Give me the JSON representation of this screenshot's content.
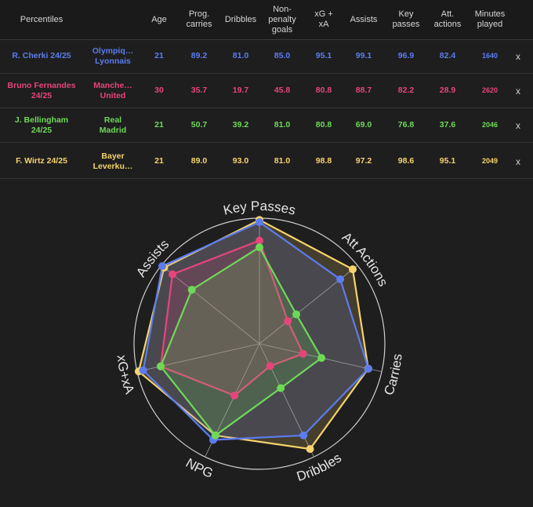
{
  "table": {
    "headers": [
      "Percentiles",
      "Age",
      "Prog.\ncarries",
      "Dribbles",
      "Non-\npenalty\ngoals",
      "xG +\nxA",
      "Assists",
      "Key\npasses",
      "Att.\nactions",
      "Minutes\nplayed"
    ],
    "remove_label": "x",
    "rows": [
      {
        "player": "R. Cherki 24/25",
        "team": "Olympiq…\nLyonnais",
        "color": "#5c7cf0",
        "values": [
          "21",
          "89.2",
          "81.0",
          "85.0",
          "95.1",
          "99.1",
          "96.9",
          "82.4",
          "1640"
        ]
      },
      {
        "player": "Bruno Fernandes\n24/25",
        "team": "Manche…\nUnited",
        "color": "#e6457a",
        "values": [
          "30",
          "35.7",
          "19.7",
          "45.8",
          "80.8",
          "88.7",
          "82.2",
          "28.9",
          "2620"
        ]
      },
      {
        "player": "J. Bellingham\n24/25",
        "team": "Real\nMadrid",
        "color": "#6fd957",
        "values": [
          "21",
          "50.7",
          "39.2",
          "81.0",
          "80.8",
          "69.0",
          "76.8",
          "37.6",
          "2046"
        ]
      },
      {
        "player": "F. Wirtz 24/25",
        "team": "Bayer\nLeverku…",
        "color": "#f7d36b",
        "values": [
          "21",
          "89.0",
          "93.0",
          "81.0",
          "98.8",
          "97.2",
          "98.6",
          "95.1",
          "2049"
        ]
      }
    ]
  },
  "chart_data": {
    "type": "radar",
    "axes": [
      "Key Passes",
      "Att Actions",
      "Carries",
      "Dribbles",
      "NPG",
      "xG+xA",
      "Assists"
    ],
    "range": [
      0,
      100
    ],
    "grid": true,
    "series": [
      {
        "name": "R. Cherki 24/25",
        "color": "#5c7cf0",
        "values": [
          96.9,
          82.4,
          89.2,
          81.0,
          85.0,
          95.1,
          99.1
        ]
      },
      {
        "name": "Bruno Fernandes 24/25",
        "color": "#e6457a",
        "values": [
          82.2,
          28.9,
          35.7,
          19.7,
          45.8,
          80.8,
          88.7
        ]
      },
      {
        "name": "J. Bellingham 24/25",
        "color": "#6fd957",
        "values": [
          76.8,
          37.6,
          50.7,
          39.2,
          81.0,
          80.8,
          69.0
        ]
      },
      {
        "name": "F. Wirtz 24/25",
        "color": "#f7d36b",
        "values": [
          98.6,
          95.1,
          89.0,
          93.0,
          81.0,
          98.8,
          97.2
        ]
      }
    ]
  }
}
